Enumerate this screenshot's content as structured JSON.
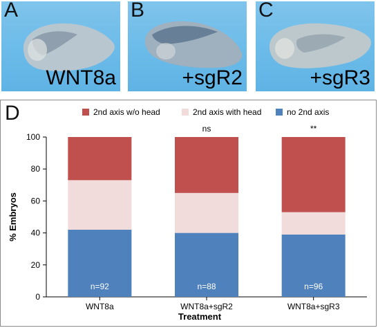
{
  "panels": [
    {
      "letter": "A",
      "label": "WNT8a"
    },
    {
      "letter": "B",
      "label": "+sgR2"
    },
    {
      "letter": "C",
      "label": "+sgR3"
    }
  ],
  "chart_panel_letter": "D",
  "chart_data": {
    "type": "bar",
    "stacked": true,
    "categories": [
      "WNT8a",
      "WNT8a+sgR2",
      "WNT8a+sgR3"
    ],
    "series": [
      {
        "name": "no 2nd axis",
        "color": "#4f81bd",
        "values": [
          42,
          40,
          39
        ]
      },
      {
        "name": "2nd axis with head",
        "color": "#f2dcdb",
        "values": [
          31,
          25,
          14
        ]
      },
      {
        "name": "2nd axis w/o head",
        "color": "#c0504d",
        "values": [
          27,
          35,
          47
        ]
      }
    ],
    "legend_order": [
      "2nd axis w/o head",
      "2nd axis with head",
      "no 2nd axis"
    ],
    "legend_position": "top",
    "sample_sizes": [
      "n=92",
      "n=88",
      "n=96"
    ],
    "significance": [
      "",
      "ns",
      "**"
    ],
    "xlabel": "Treatment",
    "ylabel": "% Embryos",
    "ylim": [
      0,
      100
    ],
    "yticks": [
      0,
      20,
      40,
      60,
      80,
      100
    ],
    "grid": false
  }
}
